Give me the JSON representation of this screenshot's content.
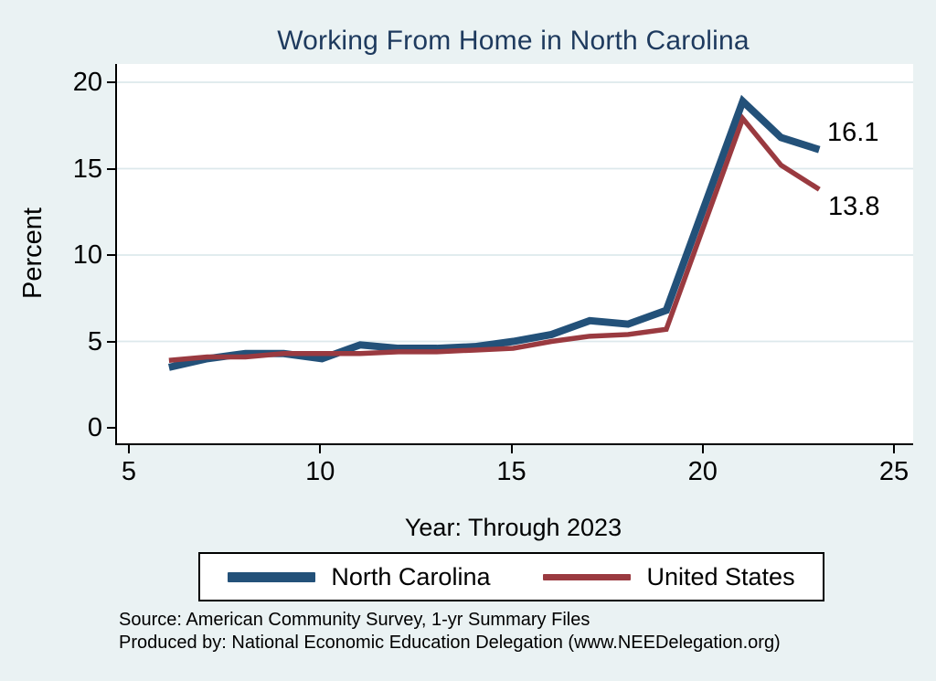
{
  "title": "Working From Home in North Carolina",
  "colors": {
    "background": "#eaf2f3",
    "plot_background": "#ffffff",
    "gridline": "#dde9ec",
    "axis": "#000000",
    "title_text": "#1e3a5e",
    "nc_line": "#235179",
    "us_line": "#9a3a40"
  },
  "chart_data": {
    "type": "line",
    "title": "Working From Home in North Carolina",
    "xlabel": "Year: Through 2023",
    "ylabel": "Percent",
    "x": [
      6,
      7,
      8,
      9,
      10,
      11,
      12,
      13,
      14,
      15,
      16,
      17,
      18,
      19,
      21,
      22,
      23
    ],
    "series": [
      {
        "name": "North Carolina",
        "color": "#235179",
        "stroke_width": 8,
        "values": [
          3.5,
          4.0,
          4.3,
          4.3,
          4.0,
          4.8,
          4.6,
          4.6,
          4.7,
          5.0,
          5.4,
          6.2,
          6.0,
          6.8,
          18.9,
          16.8,
          16.1
        ]
      },
      {
        "name": "United States",
        "color": "#9a3a40",
        "stroke_width": 5.5,
        "values": [
          3.9,
          4.1,
          4.1,
          4.3,
          4.3,
          4.3,
          4.4,
          4.4,
          4.5,
          4.6,
          5.0,
          5.3,
          5.4,
          5.7,
          17.9,
          15.2,
          13.8
        ]
      }
    ],
    "x_ticks": [
      5,
      10,
      15,
      20,
      25
    ],
    "y_ticks": [
      0,
      5,
      10,
      15,
      20
    ],
    "xlim": [
      5,
      25.5
    ],
    "ylim": [
      -0.9,
      21.1
    ],
    "grid": "horizontal",
    "legend_position": "bottom",
    "end_point_labels": {
      "north_carolina": "16.1",
      "united_states": "13.8"
    }
  },
  "annotations": {
    "nc_end": "16.1",
    "us_end": "13.8"
  },
  "legend": {
    "items": [
      {
        "label": "North Carolina"
      },
      {
        "label": "United States"
      }
    ]
  },
  "footer": {
    "line1": "Source: American Community Survey, 1-yr Summary Files",
    "line2": "Produced by: National Economic Education Delegation (www.NEEDelegation.org)"
  }
}
